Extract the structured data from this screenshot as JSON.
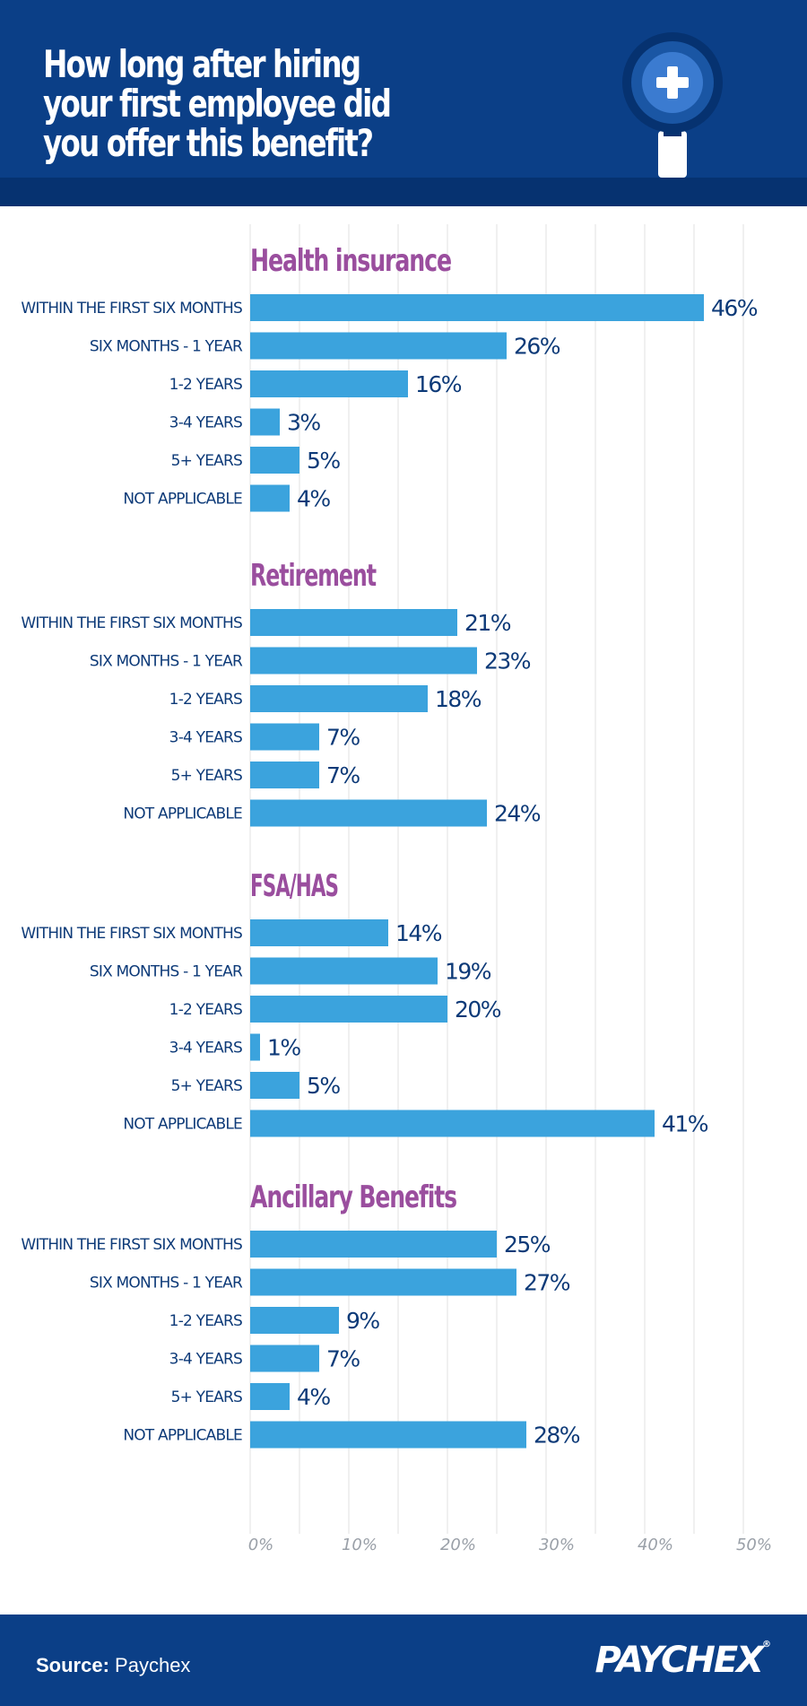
{
  "header": {
    "title": "How long after hiring your first employee did you offer this benefit?",
    "icon": "magnifier-plus-icon"
  },
  "colors": {
    "header_bg": "#0b3f87",
    "header_band": "#063270",
    "bar": "#3ba3dd",
    "section_title": "#9a4e9e",
    "label": "#0d3a78",
    "tick": "#9aa0a8",
    "grid": "#e2e2e2"
  },
  "chart_data": {
    "type": "bar",
    "orientation": "horizontal",
    "categories": [
      "Within the first six months",
      "Six months - 1 year",
      "1-2 years",
      "3-4 years",
      "5+ years",
      "Not applicable"
    ],
    "xlim": [
      0,
      50
    ],
    "xticks": [
      "0%",
      "10%",
      "20%",
      "30%",
      "40%",
      "50%"
    ],
    "grid": true,
    "value_suffix": "%",
    "groups": [
      {
        "name": "Health insurance",
        "values": [
          46,
          26,
          16,
          3,
          5,
          4
        ]
      },
      {
        "name": "Retirement",
        "values": [
          21,
          23,
          18,
          7,
          7,
          24
        ]
      },
      {
        "name": "FSA/HAS",
        "values": [
          14,
          19,
          20,
          1,
          5,
          41
        ]
      },
      {
        "name": "Ancillary Benefits",
        "values": [
          25,
          27,
          9,
          7,
          4,
          28
        ]
      }
    ]
  },
  "footer": {
    "source_label": "Source:",
    "source_value": "Paychex",
    "logo_text": "PAYCHEX",
    "logo_mark": "®"
  }
}
